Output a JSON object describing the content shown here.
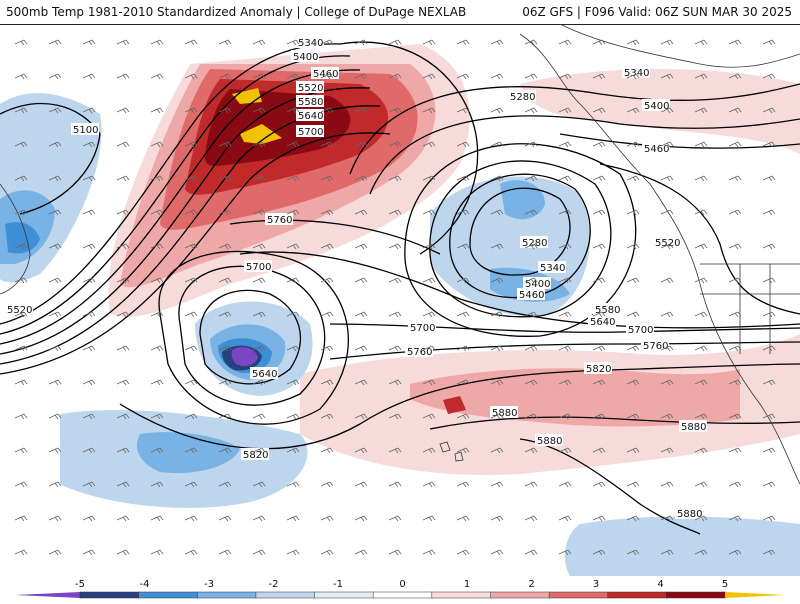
{
  "header": {
    "left_title": "500mb Temp 1981-2010 Standardized Anomaly | College of DuPage NEXLAB",
    "right_title": "06Z GFS | F096 Valid: 06Z SUN MAR 30 2025"
  },
  "colorbar": {
    "ticks": [
      "-5",
      "-4",
      "-3",
      "-2",
      "-1",
      "0",
      "1",
      "2",
      "3",
      "4",
      "5"
    ],
    "colors": [
      "#7b46c2",
      "#27407e",
      "#3f8fd6",
      "#79b3e6",
      "#bdd6ee",
      "#e3edf6",
      "#ffffff",
      "#f7dada",
      "#efa8a8",
      "#e06a6a",
      "#c02a2a",
      "#8a0a14",
      "#f2c200"
    ]
  },
  "contours": {
    "labels": [
      "5340",
      "5400",
      "5460",
      "5520",
      "5580",
      "5640",
      "5700",
      "5100",
      "5280",
      "5340",
      "5400",
      "5460",
      "5760",
      "5700",
      "5280",
      "5340",
      "5400",
      "5460",
      "5520",
      "5580",
      "5640",
      "5700",
      "5760",
      "5820",
      "5880",
      "5880",
      "5880",
      "5880",
      "5640",
      "5820",
      "5520",
      "5760",
      "5700"
    ]
  },
  "map_colors": {
    "background": "#ffffff",
    "contour": "#000000",
    "coast": "#333333",
    "barb": "#666666"
  }
}
